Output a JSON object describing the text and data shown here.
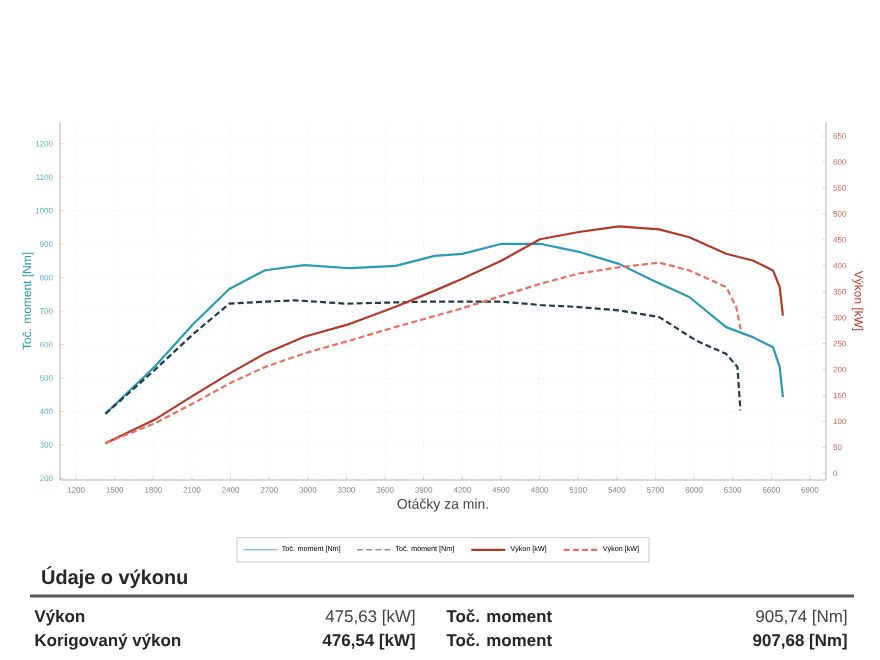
{
  "chart_data": {
    "type": "line",
    "xlabel": "Otáčky za min.",
    "ylabel": "Toč. moment [Nm]",
    "y2label": "Výkon [kW]",
    "xlim": [
      1075,
      7025
    ],
    "xticks": [
      1200,
      1500,
      1800,
      2100,
      2400,
      2700,
      3000,
      3300,
      3600,
      3900,
      4200,
      4500,
      4800,
      5100,
      5400,
      5700,
      6000,
      6300,
      6600,
      6900
    ],
    "ylim": [
      195,
      1265
    ],
    "yticks": [
      200,
      300,
      400,
      500,
      600,
      700,
      800,
      900,
      1000,
      1100,
      1200
    ],
    "y2lim": [
      -13,
      677
    ],
    "y2ticks": [
      0,
      50,
      100,
      150,
      200,
      250,
      300,
      350,
      400,
      450,
      500,
      550,
      600,
      650
    ],
    "grid": true,
    "legend": "bottom",
    "series": [
      {
        "name": "Toč. moment [Nm]",
        "color": "#2a9ab5",
        "x": [
          1428,
          1808,
          2112,
          2390,
          2669,
          2973,
          3328,
          3682,
          3986,
          4200,
          4507,
          4803,
          5105,
          5417,
          5677,
          5963,
          6249,
          6457,
          6613,
          6665,
          6690
        ],
        "values": [
          393,
          533,
          662,
          766,
          822,
          837,
          828,
          835,
          865,
          871,
          901,
          901,
          877,
          841,
          792,
          742,
          652,
          622,
          592,
          533,
          443
        ]
      },
      {
        "name": "Výkon [kW]",
        "color": "#b23a2a",
        "axis": "y2",
        "x": [
          1428,
          1808,
          2112,
          2390,
          2669,
          2973,
          3328,
          3682,
          3986,
          4200,
          4507,
          4803,
          5105,
          5417,
          5729,
          5963,
          6249,
          6457,
          6613,
          6665,
          6690
        ],
        "values": [
          58,
          103,
          150,
          192,
          231,
          263,
          288,
          321,
          352,
          375,
          410,
          451,
          465,
          476,
          470,
          455,
          423,
          410,
          391,
          359,
          304
        ]
      },
      {
        "name": "Toč. moment [Nm]",
        "color": "#1f3b4d",
        "line_style": "dashed",
        "x": [
          1428,
          1808,
          2112,
          2390,
          2669,
          2900,
          3300,
          3900,
          4200,
          4507,
          4803,
          5105,
          5417,
          5729,
          6015,
          6249,
          6337,
          6360
        ],
        "values": [
          393,
          523,
          632,
          722,
          728,
          732,
          722,
          728,
          728,
          728,
          718,
          712,
          702,
          682,
          612,
          572,
          533,
          403
        ]
      },
      {
        "name": "Výkon [kW]",
        "color": "#e8705f",
        "axis": "y2",
        "line_style": "dashed",
        "x": [
          1428,
          1808,
          2112,
          2390,
          2669,
          2973,
          3328,
          3682,
          3986,
          4200,
          4507,
          4803,
          5105,
          5417,
          5729,
          5963,
          6249,
          6327,
          6363
        ],
        "values": [
          58,
          96,
          135,
          173,
          205,
          231,
          256,
          282,
          303,
          318,
          342,
          365,
          385,
          397,
          406,
          391,
          359,
          321,
          276
        ]
      }
    ],
    "annotations": [
      "Údaje o výkonu",
      "Výkon",
      "475,63 [kW]",
      "Toč. moment",
      "905,74 [Nm]",
      "Korigovaný výkon",
      "476,54 [kW]",
      "Toč. moment",
      "907,68 [Nm]"
    ]
  }
}
